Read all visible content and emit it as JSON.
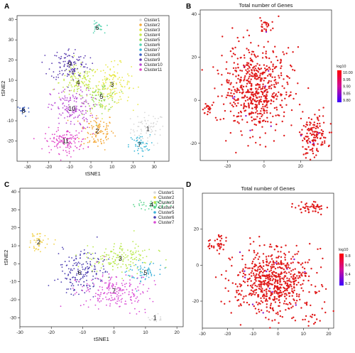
{
  "panels": [
    {
      "letter": "A",
      "xlabel": "tSNE1",
      "ylabel": "tSNE2",
      "title": "",
      "xlim": [
        -35,
        37
      ],
      "ylim": [
        -30,
        42
      ],
      "xticks": [
        -30,
        -20,
        -10,
        0,
        10,
        20,
        30
      ],
      "yticks": [
        -20,
        -10,
        0,
        10,
        20,
        30,
        40
      ],
      "legend": {
        "position": "top-right",
        "entries": [
          {
            "label": "Cluster1",
            "color": "#d9d9d9"
          },
          {
            "label": "Cluster2",
            "color": "#f4a93a"
          },
          {
            "label": "Cluster3",
            "color": "#e8e844"
          },
          {
            "label": "Cluster4",
            "color": "#c6e84a"
          },
          {
            "label": "Cluster5",
            "color": "#9bdc5a"
          },
          {
            "label": "Cluster6",
            "color": "#55d4b0"
          },
          {
            "label": "Cluster7",
            "color": "#3ab8d8"
          },
          {
            "label": "Cluster8",
            "color": "#3b5fc4"
          },
          {
            "label": "Cluster9",
            "color": "#5a3cb0"
          },
          {
            "label": "Cluster10",
            "color": "#b84ad4"
          },
          {
            "label": "Cluster11",
            "color": "#e046c8"
          }
        ]
      },
      "clusters": [
        {
          "label": "1",
          "x": 27,
          "y": -14,
          "sx": 4,
          "sy": 4,
          "n": 70
        },
        {
          "label": "2",
          "x": 3,
          "y": -15,
          "sx": 4,
          "sy": 4.5,
          "n": 110
        },
        {
          "label": "3",
          "x": 10,
          "y": 8,
          "sx": 4.5,
          "sy": 5,
          "n": 140
        },
        {
          "label": "4",
          "x": -6,
          "y": 9,
          "sx": 4.5,
          "sy": 4,
          "n": 120
        },
        {
          "label": "5",
          "x": 5,
          "y": 2,
          "sx": 4,
          "sy": 3.5,
          "n": 90
        },
        {
          "label": "6",
          "x": 3,
          "y": 36,
          "sx": 1.5,
          "sy": 1.5,
          "n": 25
        },
        {
          "label": "7",
          "x": 23,
          "y": -22,
          "sx": 2.5,
          "sy": 2.5,
          "n": 45
        },
        {
          "label": "8",
          "x": -32,
          "y": -5,
          "sx": 1.5,
          "sy": 1.5,
          "n": 20
        },
        {
          "label": "9",
          "x": -10,
          "y": 18,
          "sx": 4.5,
          "sy": 4,
          "n": 120
        },
        {
          "label": "10",
          "x": -9,
          "y": -4,
          "sx": 5,
          "sy": 5,
          "n": 150
        },
        {
          "label": "11",
          "x": -12,
          "y": -20,
          "sx": 5,
          "sy": 3,
          "n": 130
        }
      ]
    },
    {
      "letter": "B",
      "xlabel": "",
      "ylabel": "",
      "title": "Total number of Genes",
      "xlim": [
        -35,
        37
      ],
      "ylim": [
        -28,
        42
      ],
      "xticks": [
        -20,
        0,
        20
      ],
      "yticks": [
        -20,
        0,
        20,
        40
      ],
      "colorbar": {
        "title": "log10",
        "ticks": [
          "10.00",
          "9.95",
          "9.90",
          "9.85",
          "9.80"
        ],
        "high_color": "#ff0000",
        "low_color": "#3a00ff"
      },
      "point_color": "#e01a1a",
      "clusters": [
        {
          "x": -4,
          "y": 5,
          "sx": 9,
          "sy": 10,
          "n": 600
        },
        {
          "x": 1,
          "y": 34,
          "sx": 1.5,
          "sy": 2,
          "n": 25
        },
        {
          "x": -31,
          "y": -4,
          "sx": 1.5,
          "sy": 1.5,
          "n": 18
        },
        {
          "x": 27,
          "y": -16,
          "sx": 4,
          "sy": 5,
          "n": 140
        }
      ]
    },
    {
      "letter": "C",
      "xlabel": "tSNE1",
      "ylabel": "tSNE2",
      "title": "",
      "xlim": [
        -30,
        22
      ],
      "ylim": [
        -35,
        42
      ],
      "xticks": [
        -30,
        -20,
        -10,
        0,
        10,
        20
      ],
      "yticks": [
        -30,
        -20,
        -10,
        0,
        10,
        20,
        30,
        40
      ],
      "legend": {
        "position": "top-right",
        "entries": [
          {
            "label": "Cluster1",
            "color": "#d9d9d9"
          },
          {
            "label": "Cluster2",
            "color": "#f2d24a"
          },
          {
            "label": "Cluster3",
            "color": "#b8e84a"
          },
          {
            "label": "Cluster4",
            "color": "#55d48a"
          },
          {
            "label": "Cluster5",
            "color": "#3ab0d8"
          },
          {
            "label": "Cluster6",
            "color": "#4a3cb0"
          },
          {
            "label": "Cluster7",
            "color": "#d84ad4"
          }
        ]
      },
      "clusters": [
        {
          "label": "1",
          "x": 13,
          "y": -30,
          "sx": 1.5,
          "sy": 1.5,
          "n": 15
        },
        {
          "label": "2",
          "x": -24,
          "y": 12,
          "sx": 2,
          "sy": 2.5,
          "n": 45
        },
        {
          "label": "3",
          "x": 2,
          "y": 3,
          "sx": 5,
          "sy": 4,
          "n": 160
        },
        {
          "label": "4",
          "x": 12,
          "y": 33,
          "sx": 3,
          "sy": 1.5,
          "n": 45
        },
        {
          "label": "5",
          "x": 10,
          "y": -5,
          "sx": 2.5,
          "sy": 3,
          "n": 60
        },
        {
          "label": "6",
          "x": -11,
          "y": -5,
          "sx": 4,
          "sy": 6,
          "n": 170
        },
        {
          "label": "7",
          "x": 0,
          "y": -15,
          "sx": 5.5,
          "sy": 5,
          "n": 200
        }
      ]
    },
    {
      "letter": "D",
      "xlabel": "",
      "ylabel": "",
      "title": "Total number of Genes",
      "xlim": [
        -30,
        22
      ],
      "ylim": [
        -35,
        40
      ],
      "xticks": [
        -30,
        -20,
        -10,
        0,
        10,
        20
      ],
      "yticks": [
        -20,
        0,
        20
      ],
      "colorbar": {
        "title": "log10",
        "ticks": [
          "9.8",
          "9.6",
          "9.4",
          "9.2"
        ],
        "high_color": "#ff0000",
        "low_color": "#3a00ff"
      },
      "point_color": "#e01a1a",
      "clusters": [
        {
          "x": -2,
          "y": -10,
          "sx": 7.5,
          "sy": 9,
          "n": 650
        },
        {
          "x": -24,
          "y": 12,
          "sx": 2,
          "sy": 2.5,
          "n": 35
        },
        {
          "x": 12,
          "y": 32,
          "sx": 3,
          "sy": 1.5,
          "n": 50
        },
        {
          "x": 14,
          "y": -30,
          "sx": 1.5,
          "sy": 1.5,
          "n": 12
        }
      ]
    }
  ]
}
